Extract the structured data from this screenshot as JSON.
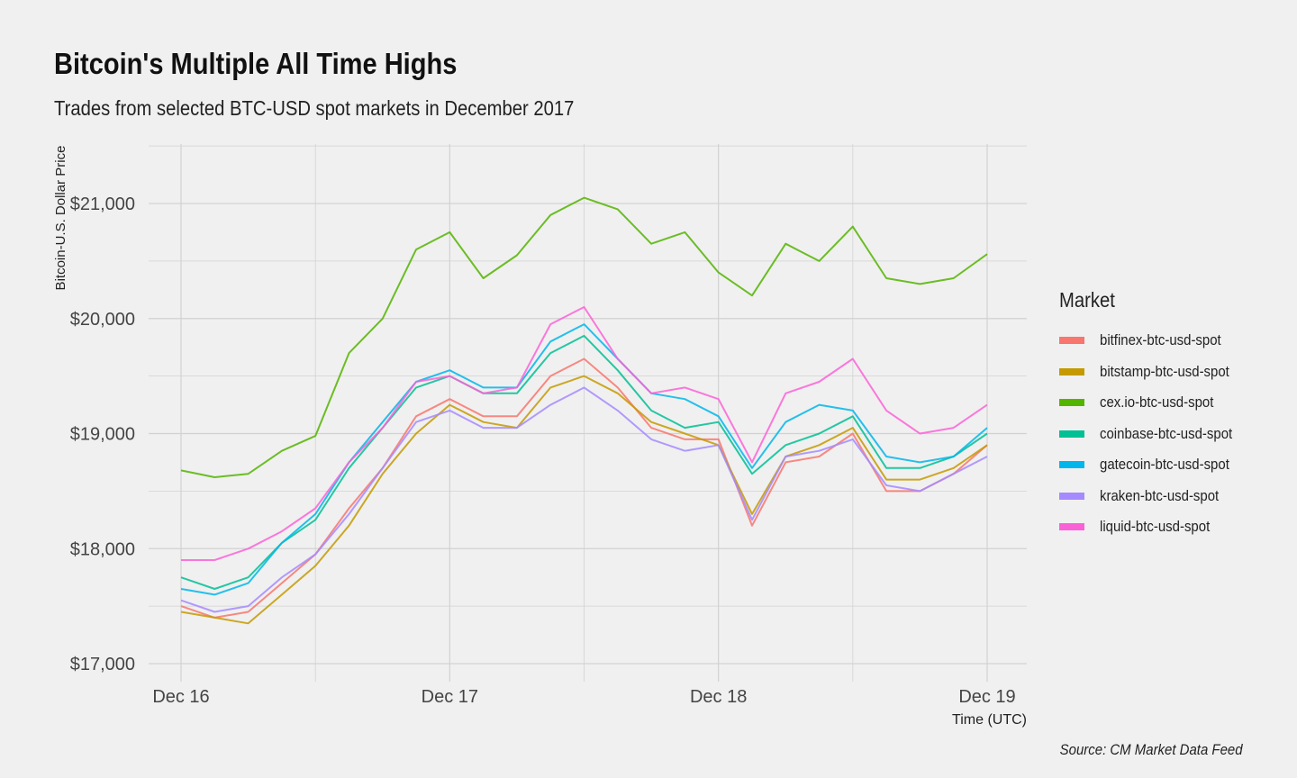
{
  "chart_data": {
    "type": "line",
    "title": "Bitcoin's Multiple All Time Highs",
    "subtitle": "Trades from selected BTC-USD spot markets in December 2017",
    "xlabel": "Time (UTC)",
    "ylabel": "Bitcoin-U.S. Dollar Price",
    "caption": "Source: CM Market Data Feed",
    "legend_title": "Market",
    "legend_position": "right",
    "grid": true,
    "x_unit": "days since Dec 16 00:00 UTC",
    "xlim": [
      -0.12,
      3.15
    ],
    "ylim": [
      16850,
      21500
    ],
    "x_ticks": [
      {
        "value": 0,
        "label": "Dec 16"
      },
      {
        "value": 1,
        "label": "Dec 17"
      },
      {
        "value": 2,
        "label": "Dec 18"
      },
      {
        "value": 3,
        "label": "Dec 19"
      }
    ],
    "y_ticks": [
      {
        "value": 17000,
        "label": "$17,000"
      },
      {
        "value": 18000,
        "label": "$18,000"
      },
      {
        "value": 19000,
        "label": "$19,000"
      },
      {
        "value": 20000,
        "label": "$20,000"
      },
      {
        "value": 21000,
        "label": "$21,000"
      }
    ],
    "x": [
      0,
      0.125,
      0.25,
      0.375,
      0.5,
      0.625,
      0.75,
      0.875,
      1,
      1.125,
      1.25,
      1.375,
      1.5,
      1.625,
      1.75,
      1.875,
      2,
      2.125,
      2.25,
      2.375,
      2.5,
      2.625,
      2.75,
      2.875,
      3
    ],
    "series": [
      {
        "name": "bitfinex-btc-usd-spot",
        "color": "#F8766D",
        "values": [
          17500,
          17400,
          17450,
          17700,
          17950,
          18350,
          18700,
          19150,
          19300,
          19150,
          19150,
          19500,
          19650,
          19400,
          19050,
          18950,
          18950,
          18200,
          18750,
          18800,
          19000,
          18500,
          18500,
          18650,
          18900
        ]
      },
      {
        "name": "bitstamp-btc-usd-spot",
        "color": "#C49A00",
        "values": [
          17450,
          17400,
          17350,
          17600,
          17850,
          18200,
          18650,
          19000,
          19250,
          19100,
          19050,
          19400,
          19500,
          19350,
          19100,
          19000,
          18900,
          18300,
          18800,
          18900,
          19050,
          18600,
          18600,
          18700,
          18900
        ]
      },
      {
        "name": "cex.io-btc-usd-spot",
        "color": "#53B400",
        "values": [
          18680,
          18620,
          18650,
          18850,
          18980,
          19700,
          20000,
          20600,
          20750,
          20350,
          20550,
          20900,
          21050,
          20950,
          20650,
          20750,
          20400,
          20200,
          20650,
          20500,
          20800,
          20350,
          20300,
          20350,
          20560
        ]
      },
      {
        "name": "coinbase-btc-usd-spot",
        "color": "#00C094",
        "values": [
          17750,
          17650,
          17750,
          18050,
          18250,
          18700,
          19050,
          19400,
          19500,
          19350,
          19350,
          19700,
          19850,
          19550,
          19200,
          19050,
          19100,
          18650,
          18900,
          19000,
          19150,
          18700,
          18700,
          18800,
          19000
        ]
      },
      {
        "name": "gatecoin-btc-usd-spot",
        "color": "#00B6EB",
        "values": [
          17650,
          17600,
          17700,
          18050,
          18300,
          18750,
          19100,
          19450,
          19550,
          19400,
          19400,
          19800,
          19950,
          19650,
          19350,
          19300,
          19150,
          18700,
          19100,
          19250,
          19200,
          18800,
          18750,
          18800,
          19050
        ]
      },
      {
        "name": "kraken-btc-usd-spot",
        "color": "#A58AFF",
        "values": [
          17550,
          17450,
          17500,
          17750,
          17950,
          18300,
          18700,
          19100,
          19200,
          19050,
          19050,
          19250,
          19400,
          19200,
          18950,
          18850,
          18900,
          18250,
          18800,
          18850,
          18950,
          18550,
          18500,
          18650,
          18800
        ]
      },
      {
        "name": "liquid-btc-usd-spot",
        "color": "#FB61D7",
        "values": [
          17900,
          17900,
          18000,
          18150,
          18350,
          18750,
          19050,
          19450,
          19500,
          19350,
          19400,
          19950,
          20100,
          19650,
          19350,
          19400,
          19300,
          18750,
          19350,
          19450,
          19650,
          19200,
          19000,
          19050,
          19250
        ]
      }
    ]
  }
}
